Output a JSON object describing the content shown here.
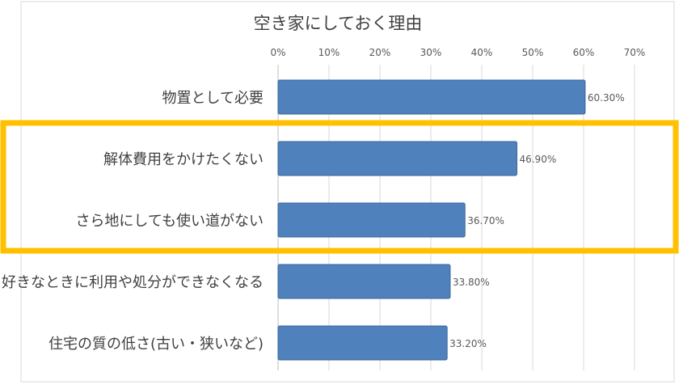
{
  "chart_data": {
    "type": "bar",
    "orientation": "horizontal",
    "title": "空き家にしておく理由",
    "xlabel": "",
    "ylabel": "",
    "xlim": [
      0,
      70
    ],
    "ticks": [
      0,
      10,
      20,
      30,
      40,
      50,
      60,
      70
    ],
    "tick_labels": [
      "0%",
      "10%",
      "20%",
      "30%",
      "40%",
      "50%",
      "60%",
      "70%"
    ],
    "categories": [
      "物置として必要",
      "解体費用をかけたくない",
      "さら地にしても使い道がない",
      "好きなときに利用や処分ができなくなる",
      "住宅の質の低さ(古い・狭いなど)"
    ],
    "values": [
      60.3,
      46.9,
      36.7,
      33.8,
      33.2
    ],
    "data_labels": [
      "60.30%",
      "46.90%",
      "36.70%",
      "33.80%",
      "33.20%"
    ],
    "grid": true,
    "legend": "none",
    "highlight": {
      "categories": [
        "解体費用をかけたくない",
        "さら地にしても使い道がない"
      ],
      "color": "#FFC000"
    },
    "colors": {
      "bar": "#4F81BD",
      "bar_stroke": "#3A6596",
      "grid": "#D9D9D9",
      "text": "#404040"
    }
  }
}
